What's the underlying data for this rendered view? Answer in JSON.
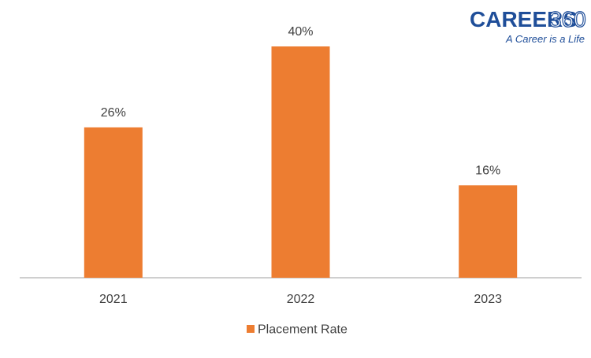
{
  "chart_data": {
    "type": "bar",
    "categories": [
      "2021",
      "2022",
      "2023"
    ],
    "series": [
      {
        "name": "Placement Rate",
        "values": [
          26,
          40,
          16
        ],
        "color": "#ED7D31"
      }
    ],
    "value_labels": [
      "26%",
      "40%",
      "16%"
    ],
    "title": "",
    "xlabel": "",
    "ylabel": "",
    "ylim": [
      0,
      40
    ],
    "grid": false,
    "legend_position": "bottom"
  },
  "branding": {
    "logo_text": "CAREERS",
    "logo_number": "360",
    "tagline": "A Career is a Life",
    "logo_color": "#1f4e99"
  },
  "colors": {
    "axis": "#bfbfbf",
    "text": "#404040"
  }
}
